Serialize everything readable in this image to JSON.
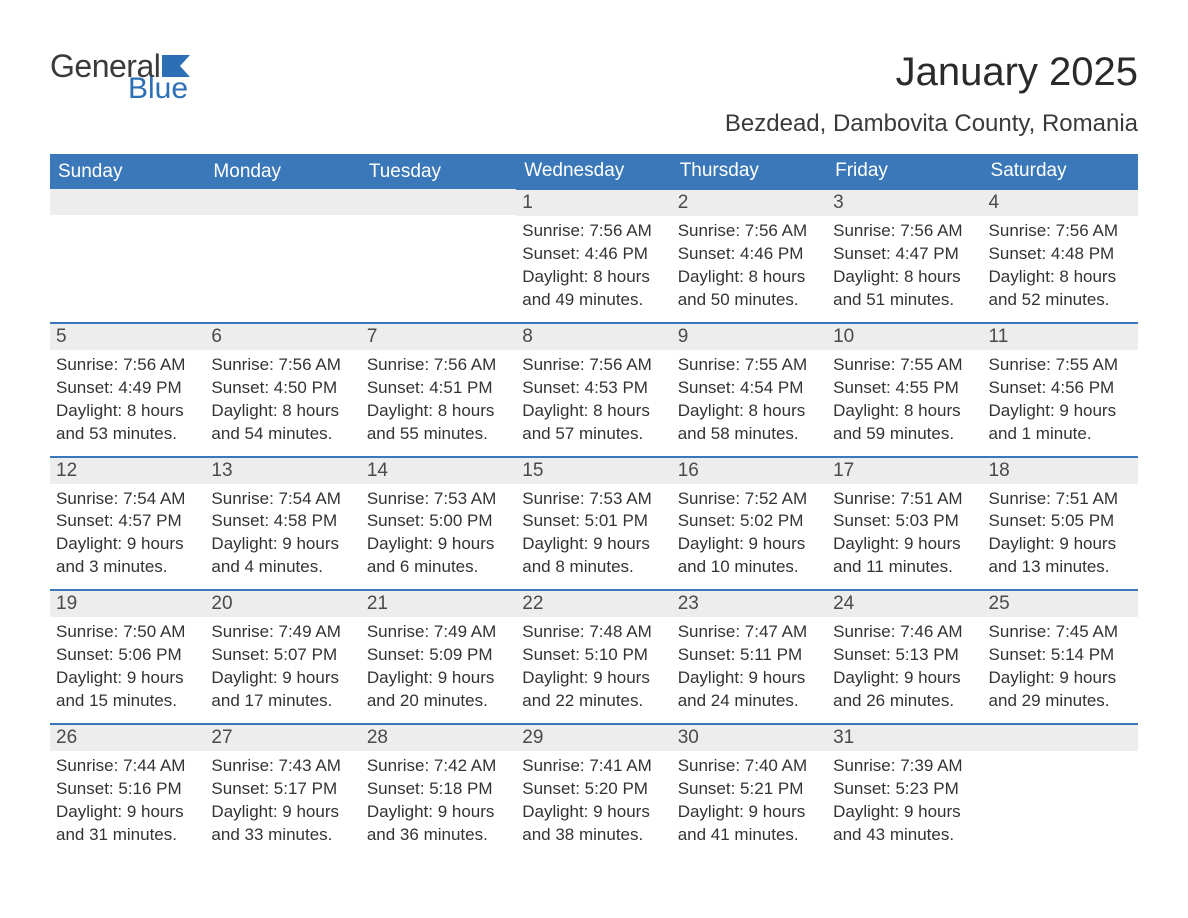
{
  "logo": {
    "word1": "General",
    "word2": "Blue"
  },
  "title": "January 2025",
  "subtitle": "Bezdead, Dambovita County, Romania",
  "colors": {
    "header_bg": "#3b78b9",
    "header_text": "#ffffff",
    "daynum_bg": "#ededed",
    "row_divider": "#3b78b9",
    "body_text": "#333333",
    "logo_blue": "#2d6fb5",
    "page_bg": "#ffffff"
  },
  "font_sizes": {
    "title": 40,
    "subtitle": 24,
    "dayheader": 19,
    "daynum": 19,
    "daydata": 17
  },
  "day_headers": [
    "Sunday",
    "Monday",
    "Tuesday",
    "Wednesday",
    "Thursday",
    "Friday",
    "Saturday"
  ],
  "weeks": [
    [
      {
        "day": "",
        "empty": true
      },
      {
        "day": "",
        "empty": true
      },
      {
        "day": "",
        "empty": true
      },
      {
        "day": "1",
        "sunrise": "Sunrise: 7:56 AM",
        "sunset": "Sunset: 4:46 PM",
        "daylight1": "Daylight: 8 hours",
        "daylight2": "and 49 minutes."
      },
      {
        "day": "2",
        "sunrise": "Sunrise: 7:56 AM",
        "sunset": "Sunset: 4:46 PM",
        "daylight1": "Daylight: 8 hours",
        "daylight2": "and 50 minutes."
      },
      {
        "day": "3",
        "sunrise": "Sunrise: 7:56 AM",
        "sunset": "Sunset: 4:47 PM",
        "daylight1": "Daylight: 8 hours",
        "daylight2": "and 51 minutes."
      },
      {
        "day": "4",
        "sunrise": "Sunrise: 7:56 AM",
        "sunset": "Sunset: 4:48 PM",
        "daylight1": "Daylight: 8 hours",
        "daylight2": "and 52 minutes."
      }
    ],
    [
      {
        "day": "5",
        "sunrise": "Sunrise: 7:56 AM",
        "sunset": "Sunset: 4:49 PM",
        "daylight1": "Daylight: 8 hours",
        "daylight2": "and 53 minutes."
      },
      {
        "day": "6",
        "sunrise": "Sunrise: 7:56 AM",
        "sunset": "Sunset: 4:50 PM",
        "daylight1": "Daylight: 8 hours",
        "daylight2": "and 54 minutes."
      },
      {
        "day": "7",
        "sunrise": "Sunrise: 7:56 AM",
        "sunset": "Sunset: 4:51 PM",
        "daylight1": "Daylight: 8 hours",
        "daylight2": "and 55 minutes."
      },
      {
        "day": "8",
        "sunrise": "Sunrise: 7:56 AM",
        "sunset": "Sunset: 4:53 PM",
        "daylight1": "Daylight: 8 hours",
        "daylight2": "and 57 minutes."
      },
      {
        "day": "9",
        "sunrise": "Sunrise: 7:55 AM",
        "sunset": "Sunset: 4:54 PM",
        "daylight1": "Daylight: 8 hours",
        "daylight2": "and 58 minutes."
      },
      {
        "day": "10",
        "sunrise": "Sunrise: 7:55 AM",
        "sunset": "Sunset: 4:55 PM",
        "daylight1": "Daylight: 8 hours",
        "daylight2": "and 59 minutes."
      },
      {
        "day": "11",
        "sunrise": "Sunrise: 7:55 AM",
        "sunset": "Sunset: 4:56 PM",
        "daylight1": "Daylight: 9 hours",
        "daylight2": "and 1 minute."
      }
    ],
    [
      {
        "day": "12",
        "sunrise": "Sunrise: 7:54 AM",
        "sunset": "Sunset: 4:57 PM",
        "daylight1": "Daylight: 9 hours",
        "daylight2": "and 3 minutes."
      },
      {
        "day": "13",
        "sunrise": "Sunrise: 7:54 AM",
        "sunset": "Sunset: 4:58 PM",
        "daylight1": "Daylight: 9 hours",
        "daylight2": "and 4 minutes."
      },
      {
        "day": "14",
        "sunrise": "Sunrise: 7:53 AM",
        "sunset": "Sunset: 5:00 PM",
        "daylight1": "Daylight: 9 hours",
        "daylight2": "and 6 minutes."
      },
      {
        "day": "15",
        "sunrise": "Sunrise: 7:53 AM",
        "sunset": "Sunset: 5:01 PM",
        "daylight1": "Daylight: 9 hours",
        "daylight2": "and 8 minutes."
      },
      {
        "day": "16",
        "sunrise": "Sunrise: 7:52 AM",
        "sunset": "Sunset: 5:02 PM",
        "daylight1": "Daylight: 9 hours",
        "daylight2": "and 10 minutes."
      },
      {
        "day": "17",
        "sunrise": "Sunrise: 7:51 AM",
        "sunset": "Sunset: 5:03 PM",
        "daylight1": "Daylight: 9 hours",
        "daylight2": "and 11 minutes."
      },
      {
        "day": "18",
        "sunrise": "Sunrise: 7:51 AM",
        "sunset": "Sunset: 5:05 PM",
        "daylight1": "Daylight: 9 hours",
        "daylight2": "and 13 minutes."
      }
    ],
    [
      {
        "day": "19",
        "sunrise": "Sunrise: 7:50 AM",
        "sunset": "Sunset: 5:06 PM",
        "daylight1": "Daylight: 9 hours",
        "daylight2": "and 15 minutes."
      },
      {
        "day": "20",
        "sunrise": "Sunrise: 7:49 AM",
        "sunset": "Sunset: 5:07 PM",
        "daylight1": "Daylight: 9 hours",
        "daylight2": "and 17 minutes."
      },
      {
        "day": "21",
        "sunrise": "Sunrise: 7:49 AM",
        "sunset": "Sunset: 5:09 PM",
        "daylight1": "Daylight: 9 hours",
        "daylight2": "and 20 minutes."
      },
      {
        "day": "22",
        "sunrise": "Sunrise: 7:48 AM",
        "sunset": "Sunset: 5:10 PM",
        "daylight1": "Daylight: 9 hours",
        "daylight2": "and 22 minutes."
      },
      {
        "day": "23",
        "sunrise": "Sunrise: 7:47 AM",
        "sunset": "Sunset: 5:11 PM",
        "daylight1": "Daylight: 9 hours",
        "daylight2": "and 24 minutes."
      },
      {
        "day": "24",
        "sunrise": "Sunrise: 7:46 AM",
        "sunset": "Sunset: 5:13 PM",
        "daylight1": "Daylight: 9 hours",
        "daylight2": "and 26 minutes."
      },
      {
        "day": "25",
        "sunrise": "Sunrise: 7:45 AM",
        "sunset": "Sunset: 5:14 PM",
        "daylight1": "Daylight: 9 hours",
        "daylight2": "and 29 minutes."
      }
    ],
    [
      {
        "day": "26",
        "sunrise": "Sunrise: 7:44 AM",
        "sunset": "Sunset: 5:16 PM",
        "daylight1": "Daylight: 9 hours",
        "daylight2": "and 31 minutes."
      },
      {
        "day": "27",
        "sunrise": "Sunrise: 7:43 AM",
        "sunset": "Sunset: 5:17 PM",
        "daylight1": "Daylight: 9 hours",
        "daylight2": "and 33 minutes."
      },
      {
        "day": "28",
        "sunrise": "Sunrise: 7:42 AM",
        "sunset": "Sunset: 5:18 PM",
        "daylight1": "Daylight: 9 hours",
        "daylight2": "and 36 minutes."
      },
      {
        "day": "29",
        "sunrise": "Sunrise: 7:41 AM",
        "sunset": "Sunset: 5:20 PM",
        "daylight1": "Daylight: 9 hours",
        "daylight2": "and 38 minutes."
      },
      {
        "day": "30",
        "sunrise": "Sunrise: 7:40 AM",
        "sunset": "Sunset: 5:21 PM",
        "daylight1": "Daylight: 9 hours",
        "daylight2": "and 41 minutes."
      },
      {
        "day": "31",
        "sunrise": "Sunrise: 7:39 AM",
        "sunset": "Sunset: 5:23 PM",
        "daylight1": "Daylight: 9 hours",
        "daylight2": "and 43 minutes."
      },
      {
        "day": "",
        "empty": true
      }
    ]
  ]
}
